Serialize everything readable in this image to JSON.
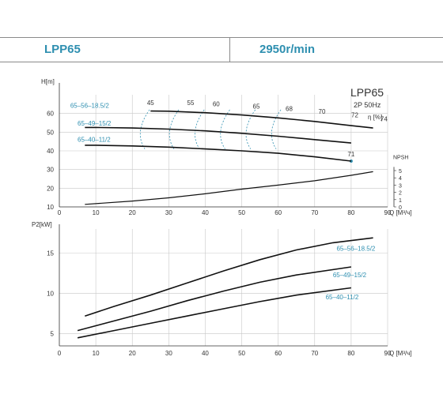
{
  "header": {
    "model": "LPP65",
    "speed": "2950r/min"
  },
  "chart_data": [
    {
      "type": "line",
      "title": "LPP65",
      "subtitle": "2P  50Hz",
      "ylabel": "H[m]",
      "xlabel": "Q [M³/ч]",
      "xlim": [
        0,
        90
      ],
      "ylim": [
        10,
        70
      ],
      "xticks": [
        "0",
        "10",
        "20",
        "30",
        "40",
        "50",
        "60",
        "70",
        "80",
        "90"
      ],
      "yticks": [
        "10",
        "20",
        "30",
        "40",
        "50",
        "60"
      ],
      "series": [
        {
          "name": "65–56–18.5/2",
          "x": [
            25,
            30,
            40,
            50,
            60,
            70,
            80,
            86
          ],
          "y": [
            61.3,
            61.2,
            60.4,
            59.2,
            57.6,
            55.7,
            53.5,
            52.2
          ]
        },
        {
          "name": "65–49–15/2",
          "x": [
            7,
            10,
            20,
            30,
            40,
            50,
            60,
            70,
            80
          ],
          "y": [
            52.5,
            52.5,
            52.2,
            51.6,
            50.7,
            49.4,
            47.8,
            46.0,
            44.2
          ]
        },
        {
          "name": "65–40–11/2",
          "x": [
            7,
            10,
            20,
            30,
            40,
            50,
            60,
            70,
            80
          ],
          "y": [
            43.0,
            43.0,
            42.6,
            42.0,
            41.0,
            40.0,
            38.7,
            36.8,
            34.5
          ]
        }
      ],
      "efficiency": {
        "label": "η [%]",
        "contours": [
          "45",
          "55",
          "60",
          "65",
          "68",
          "70",
          "72",
          "74"
        ],
        "end_label": "71"
      },
      "npsh": {
        "label": "NPSH",
        "ticks": [
          "0",
          "1",
          "2",
          "3",
          "4",
          "5"
        ],
        "x": [
          7,
          20,
          30,
          40,
          50,
          60,
          70,
          80,
          86
        ],
        "y": [
          0.35,
          0.8,
          1.25,
          1.8,
          2.45,
          3.0,
          3.6,
          4.35,
          4.85
        ]
      }
    },
    {
      "type": "line",
      "ylabel": "P2[kW]",
      "xlabel": "Q [M³/ч]",
      "xlim": [
        0,
        90
      ],
      "ylim": [
        3.5,
        18
      ],
      "xticks": [
        "0",
        "10",
        "20",
        "30",
        "40",
        "50",
        "60",
        "70",
        "80",
        "90"
      ],
      "yticks": [
        "5",
        "10",
        "15"
      ],
      "series": [
        {
          "name": "65–56–18.5/2",
          "x": [
            7,
            15,
            25,
            35,
            45,
            55,
            65,
            75,
            86
          ],
          "y": [
            7.2,
            8.4,
            9.8,
            11.3,
            12.8,
            14.2,
            15.4,
            16.3,
            16.9
          ]
        },
        {
          "name": "65–49–15/2",
          "x": [
            5,
            15,
            25,
            35,
            45,
            55,
            65,
            80
          ],
          "y": [
            5.4,
            6.6,
            7.8,
            9.1,
            10.3,
            11.4,
            12.3,
            13.3
          ]
        },
        {
          "name": "65–40–11/2",
          "x": [
            5,
            15,
            25,
            35,
            45,
            55,
            65,
            80
          ],
          "y": [
            4.5,
            5.4,
            6.3,
            7.2,
            8.1,
            9.0,
            9.8,
            10.7
          ]
        }
      ]
    }
  ],
  "colors": {
    "curve": "#111111",
    "label": "#2e8fb0",
    "grid": "#c8c8c8",
    "axis": "#333333"
  }
}
